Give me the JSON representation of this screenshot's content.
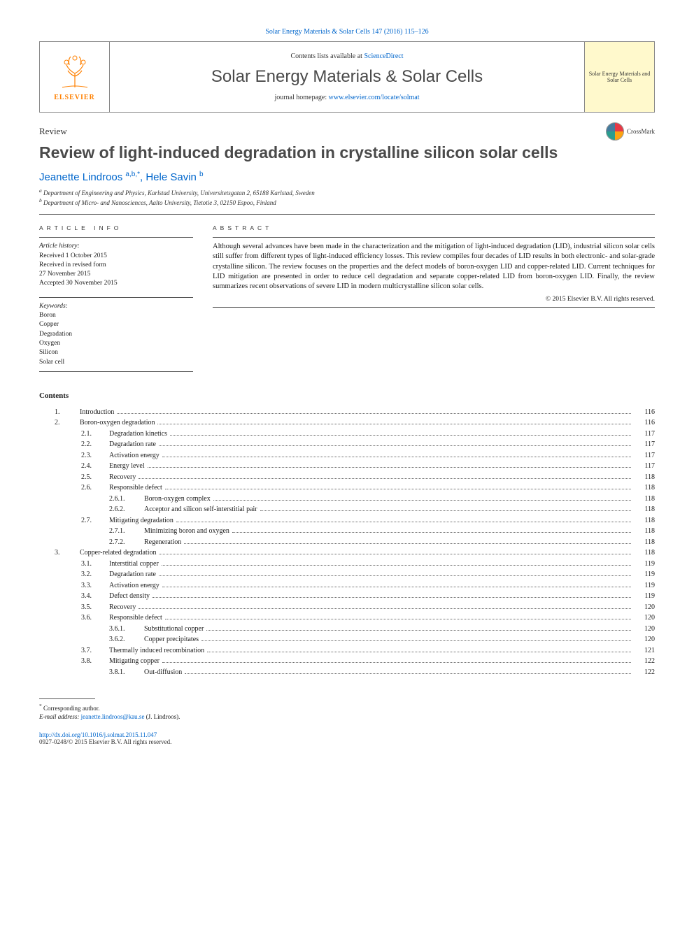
{
  "breadcrumb": "Solar Energy Materials & Solar Cells 147 (2016) 115–126",
  "header": {
    "contents_available": "Contents lists available at ",
    "sciencedirect": "ScienceDirect",
    "journal_title": "Solar Energy Materials & Solar Cells",
    "homepage_label": "journal homepage: ",
    "homepage_url": "www.elsevier.com/locate/solmat",
    "publisher_label": "ELSEVIER",
    "cover_text": "Solar Energy Materials and Solar Cells"
  },
  "article_type": "Review",
  "crossmark": "CrossMark",
  "title": "Review of light-induced degradation in crystalline silicon solar cells",
  "authors": "Jeanette Lindroos ",
  "author1_sup": "a,b,*",
  "author2": ", Hele Savin ",
  "author2_sup": "b",
  "affiliations": {
    "a_sup": "a",
    "a": " Department of Engineering and Physics, Karlstad University, Universitetsgatan 2, 65188 Karlstad, Sweden",
    "b_sup": "b",
    "b": " Department of Micro- and Nanosciences, Aalto University, Tietotie 3, 02150 Espoo, Finland"
  },
  "article_info_label": "ARTICLE INFO",
  "abstract_label": "ABSTRACT",
  "history": {
    "label": "Article history:",
    "received": "Received 1 October 2015",
    "revised1": "Received in revised form",
    "revised2": "27 November 2015",
    "accepted": "Accepted 30 November 2015"
  },
  "keywords": {
    "label": "Keywords:",
    "k1": "Boron",
    "k2": "Copper",
    "k3": "Degradation",
    "k4": "Oxygen",
    "k5": "Silicon",
    "k6": "Solar cell"
  },
  "abstract": "Although several advances have been made in the characterization and the mitigation of light-induced degradation (LID), industrial silicon solar cells still suffer from different types of light-induced efficiency losses. This review compiles four decades of LID results in both electronic- and solar-grade crystalline silicon. The review focuses on the properties and the defect models of boron-oxygen LID and copper-related LID. Current techniques for LID mitigation are presented in order to reduce cell degradation and separate copper-related LID from boron-oxygen LID. Finally, the review summarizes recent observations of severe LID in modern multicrystalline silicon solar cells.",
  "copyright": "© 2015 Elsevier B.V. All rights reserved.",
  "contents_heading": "Contents",
  "toc": [
    {
      "num": "1.",
      "label": "Introduction",
      "page": "116",
      "indent": 1,
      "num_width": 36
    },
    {
      "num": "2.",
      "label": "Boron-oxygen degradation ",
      "page": "116",
      "indent": 1,
      "num_width": 36
    },
    {
      "num": "2.1.",
      "label": "Degradation kinetics ",
      "page": "117",
      "indent": 2,
      "num_width": 40
    },
    {
      "num": "2.2.",
      "label": "Degradation rate ",
      "page": "117",
      "indent": 2,
      "num_width": 40
    },
    {
      "num": "2.3.",
      "label": "Activation energy",
      "page": "117",
      "indent": 2,
      "num_width": 40
    },
    {
      "num": "2.4.",
      "label": "Energy level",
      "page": "117",
      "indent": 2,
      "num_width": 40
    },
    {
      "num": "2.5.",
      "label": "Recovery",
      "page": "118",
      "indent": 2,
      "num_width": 40
    },
    {
      "num": "2.6.",
      "label": "Responsible defect",
      "page": "118",
      "indent": 2,
      "num_width": 40
    },
    {
      "num": "2.6.1.",
      "label": "Boron-oxygen complex ",
      "page": "118",
      "indent": 3,
      "num_width": 50
    },
    {
      "num": "2.6.2.",
      "label": "Acceptor and silicon self-interstitial pair ",
      "page": "118",
      "indent": 3,
      "num_width": 50
    },
    {
      "num": "2.7.",
      "label": "Mitigating degradation ",
      "page": "118",
      "indent": 2,
      "num_width": 40
    },
    {
      "num": "2.7.1.",
      "label": "Minimizing boron and oxygen ",
      "page": "118",
      "indent": 3,
      "num_width": 50
    },
    {
      "num": "2.7.2.",
      "label": "Regeneration ",
      "page": "118",
      "indent": 3,
      "num_width": 50
    },
    {
      "num": "3.",
      "label": "Copper-related degradation",
      "page": "118",
      "indent": 1,
      "num_width": 36
    },
    {
      "num": "3.1.",
      "label": "Interstitial copper ",
      "page": "119",
      "indent": 2,
      "num_width": 40
    },
    {
      "num": "3.2.",
      "label": "Degradation rate ",
      "page": "119",
      "indent": 2,
      "num_width": 40
    },
    {
      "num": "3.3.",
      "label": "Activation energy",
      "page": "119",
      "indent": 2,
      "num_width": 40
    },
    {
      "num": "3.4.",
      "label": "Defect density ",
      "page": "119",
      "indent": 2,
      "num_width": 40
    },
    {
      "num": "3.5.",
      "label": "Recovery",
      "page": "120",
      "indent": 2,
      "num_width": 40
    },
    {
      "num": "3.6.",
      "label": "Responsible defect",
      "page": "120",
      "indent": 2,
      "num_width": 40
    },
    {
      "num": "3.6.1.",
      "label": "Substitutional copper",
      "page": "120",
      "indent": 3,
      "num_width": 50
    },
    {
      "num": "3.6.2.",
      "label": "Copper precipitates ",
      "page": "120",
      "indent": 3,
      "num_width": 50
    },
    {
      "num": "3.7.",
      "label": "Thermally induced recombination ",
      "page": "121",
      "indent": 2,
      "num_width": 40
    },
    {
      "num": "3.8.",
      "label": "Mitigating copper ",
      "page": "122",
      "indent": 2,
      "num_width": 40
    },
    {
      "num": "3.8.1.",
      "label": "Out-diffusion ",
      "page": "122",
      "indent": 3,
      "num_width": 50
    }
  ],
  "footer": {
    "corresp_sup": "*",
    "corresp": " Corresponding author.",
    "email_label": "E-mail address: ",
    "email": "jeanette.lindroos@kau.se",
    "email_suffix": " (J. Lindroos).",
    "doi": "http://dx.doi.org/10.1016/j.solmat.2015.11.047",
    "issn": "0927-0248/© 2015 Elsevier B.V. All rights reserved."
  },
  "colors": {
    "link": "#0066cc",
    "text": "#1a1a1a",
    "elsevier_orange": "#ff8000",
    "cover_bg": "#fff9cc",
    "rule": "#555555"
  }
}
